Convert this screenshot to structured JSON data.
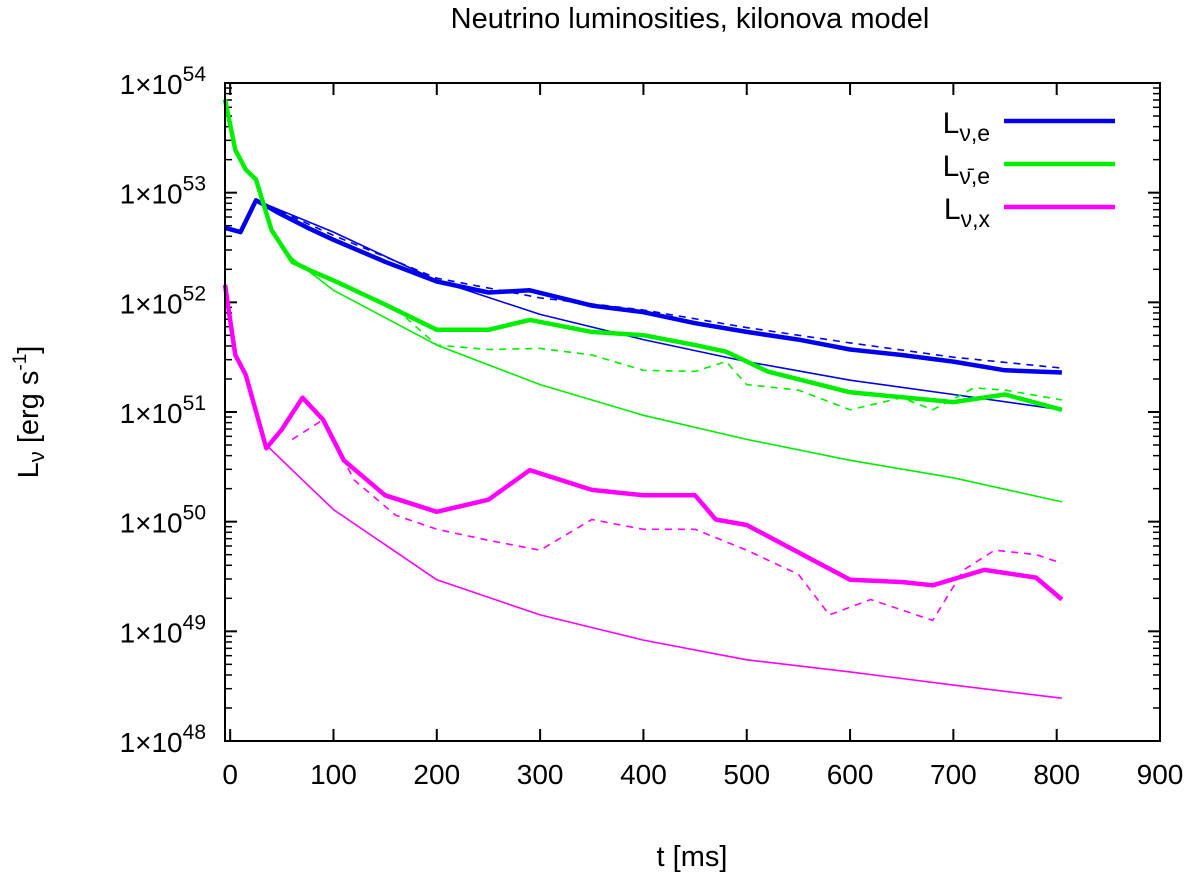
{
  "chart_data": {
    "type": "line",
    "title": "Neutrino luminosities, kilonova model",
    "xlabel": "t [ms]",
    "ylabel": "Lν [erg s⁻¹]",
    "ylabel_parts": {
      "main": "L",
      "sub": "ν",
      "unit": " [erg s",
      "exp": "-1",
      "close": "]"
    },
    "xlim": [
      -5,
      900
    ],
    "ylim_log10": [
      48,
      54
    ],
    "yscale": "log",
    "x_ticks": [
      0,
      100,
      200,
      300,
      400,
      500,
      600,
      700,
      800,
      900
    ],
    "x_tick_labels": [
      "0",
      "100",
      "200",
      "300",
      "400",
      "500",
      "600",
      "700",
      "800",
      "900"
    ],
    "y_ticks_log10": [
      48,
      49,
      50,
      51,
      52,
      53,
      54
    ],
    "y_tick_labels": [
      {
        "base": "1×10",
        "exp": "48"
      },
      {
        "base": "1×10",
        "exp": "49"
      },
      {
        "base": "1×10",
        "exp": "50"
      },
      {
        "base": "1×10",
        "exp": "51"
      },
      {
        "base": "1×10",
        "exp": "52"
      },
      {
        "base": "1×10",
        "exp": "53"
      },
      {
        "base": "1×10",
        "exp": "54"
      }
    ],
    "grid": false,
    "legend_placement": "top-right",
    "legend": [
      {
        "main": "L",
        "sub": "ν,e",
        "color": "#0000ee"
      },
      {
        "main": "L",
        "sub": "ν̄,e",
        "color": "#00ee00"
      },
      {
        "main": "L",
        "sub": "ν,x",
        "color": "#ff00ff"
      }
    ],
    "y_units": "log10(L / erg s^-1)",
    "series": [
      {
        "name": "nu_e simulation",
        "style": "thick",
        "color": "#0000ee",
        "x": [
          -5,
          10,
          25,
          50,
          75,
          100,
          150,
          200,
          250,
          290,
          350,
          400,
          450,
          500,
          550,
          600,
          650,
          700,
          750,
          805
        ],
        "y": [
          52.68,
          52.64,
          52.93,
          52.8,
          52.68,
          52.57,
          52.37,
          52.19,
          52.09,
          52.11,
          51.97,
          51.91,
          51.81,
          51.73,
          51.66,
          51.57,
          51.52,
          51.46,
          51.38,
          51.36
        ]
      },
      {
        "name": "nu_e model fit",
        "style": "thin",
        "color": "#0000ee",
        "x": [
          25,
          100,
          200,
          300,
          400,
          500,
          600,
          700,
          805
        ],
        "y": [
          52.93,
          52.64,
          52.2,
          51.89,
          51.66,
          51.46,
          51.29,
          51.16,
          51.02
        ]
      },
      {
        "name": "nu_e dashed",
        "style": "dashed",
        "color": "#0000ee",
        "x": [
          25,
          100,
          200,
          300,
          400,
          500,
          600,
          700,
          805
        ],
        "y": [
          52.93,
          52.61,
          52.22,
          52.04,
          51.93,
          51.77,
          51.63,
          51.5,
          51.4
        ]
      },
      {
        "name": "anti-nu_e simulation",
        "style": "thick",
        "color": "#00ee00",
        "x": [
          -5,
          5,
          15,
          25,
          40,
          60,
          80,
          100,
          150,
          200,
          250,
          290,
          350,
          400,
          450,
          480,
          520,
          600,
          700,
          750,
          805
        ],
        "y": [
          53.85,
          53.39,
          53.21,
          53.12,
          52.66,
          52.37,
          52.28,
          52.2,
          51.98,
          51.75,
          51.75,
          51.84,
          51.73,
          51.7,
          51.61,
          51.55,
          51.37,
          51.18,
          51.09,
          51.16,
          51.02
        ]
      },
      {
        "name": "anti-nu_e model fit",
        "style": "thin",
        "color": "#00ee00",
        "x": [
          40,
          60,
          100,
          200,
          300,
          400,
          500,
          600,
          700,
          805
        ],
        "y": [
          52.66,
          52.4,
          52.11,
          51.61,
          51.25,
          50.97,
          50.75,
          50.56,
          50.4,
          50.18
        ]
      },
      {
        "name": "anti-nu_e dashed",
        "style": "dashed",
        "color": "#00ee00",
        "x": [
          170,
          200,
          250,
          300,
          350,
          400,
          450,
          480,
          500,
          550,
          600,
          650,
          680,
          720,
          750,
          805
        ],
        "y": [
          51.86,
          51.61,
          51.57,
          51.58,
          51.52,
          51.38,
          51.37,
          51.46,
          51.25,
          51.2,
          51.02,
          51.13,
          51.02,
          51.22,
          51.2,
          51.11
        ]
      },
      {
        "name": "nu_x simulation",
        "style": "thick",
        "color": "#ff00ff",
        "x": [
          -5,
          5,
          15,
          35,
          50,
          70,
          90,
          110,
          150,
          200,
          250,
          290,
          320,
          350,
          400,
          450,
          470,
          500,
          550,
          600,
          650,
          680,
          730,
          780,
          805
        ],
        "y": [
          52.16,
          51.52,
          51.34,
          50.67,
          50.84,
          51.13,
          50.93,
          50.56,
          50.24,
          50.09,
          50.2,
          50.47,
          50.38,
          50.29,
          50.24,
          50.24,
          50.02,
          49.97,
          49.72,
          49.47,
          49.45,
          49.42,
          49.56,
          49.49,
          49.29
        ]
      },
      {
        "name": "nu_x model fit",
        "style": "thin",
        "color": "#ff00ff",
        "x": [
          35,
          60,
          100,
          200,
          300,
          400,
          500,
          600,
          700,
          805
        ],
        "y": [
          50.7,
          50.47,
          50.11,
          49.47,
          49.15,
          48.92,
          48.74,
          48.63,
          48.51,
          48.39
        ]
      },
      {
        "name": "nu_x dashed",
        "style": "dashed",
        "color": "#ff00ff",
        "x": [
          60,
          90,
          120,
          160,
          200,
          250,
          300,
          350,
          400,
          450,
          500,
          550,
          580,
          620,
          680,
          710,
          740,
          780,
          805
        ],
        "y": [
          50.75,
          50.93,
          50.38,
          50.06,
          49.93,
          49.83,
          49.74,
          50.02,
          49.93,
          49.93,
          49.74,
          49.52,
          49.15,
          49.29,
          49.1,
          49.56,
          49.74,
          49.7,
          49.62
        ]
      }
    ]
  }
}
